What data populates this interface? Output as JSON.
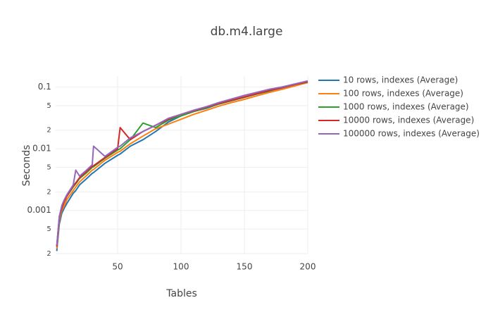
{
  "chart_data": {
    "type": "line",
    "title": "db.m4.large",
    "xlabel": "Tables",
    "ylabel": "Seconds",
    "x": [
      2,
      4,
      6,
      8,
      10,
      15,
      17,
      20,
      25,
      30,
      31,
      40,
      50,
      52,
      60,
      70,
      80,
      90,
      100,
      110,
      120,
      130,
      140,
      150,
      160,
      170,
      180,
      190,
      200
    ],
    "series": [
      {
        "name": "10 rows, indexes (Average)",
        "color": "#1f77b4",
        "values": [
          0.00022,
          0.0006,
          0.0009,
          0.0011,
          0.0013,
          0.0019,
          0.0021,
          0.0026,
          0.0032,
          0.004,
          0.0041,
          0.0058,
          0.0078,
          0.0082,
          0.011,
          0.014,
          0.019,
          0.027,
          0.034,
          0.04,
          0.045,
          0.053,
          0.06,
          0.068,
          0.077,
          0.087,
          0.097,
          0.108,
          0.12
        ]
      },
      {
        "name": "100 rows, indexes (Average)",
        "color": "#ff7f0e",
        "values": [
          0.00024,
          0.00068,
          0.001,
          0.0012,
          0.0015,
          0.0021,
          0.0024,
          0.0029,
          0.0036,
          0.0045,
          0.0046,
          0.0065,
          0.0087,
          0.0091,
          0.012,
          0.016,
          0.021,
          0.025,
          0.03,
          0.036,
          0.042,
          0.049,
          0.056,
          0.063,
          0.072,
          0.082,
          0.092,
          0.104,
          0.118
        ]
      },
      {
        "name": "1000 rows, indexes (Average)",
        "color": "#2ca02c",
        "values": [
          0.00026,
          0.00075,
          0.0011,
          0.0014,
          0.0017,
          0.0024,
          0.0027,
          0.0033,
          0.004,
          0.005,
          0.0051,
          0.007,
          0.0095,
          0.01,
          0.014,
          0.026,
          0.022,
          0.029,
          0.034,
          0.04,
          0.046,
          0.053,
          0.06,
          0.068,
          0.077,
          0.086,
          0.1,
          0.11,
          0.12
        ]
      },
      {
        "name": "10000 rows, indexes (Average)",
        "color": "#d62728",
        "values": [
          0.00026,
          0.00078,
          0.0011,
          0.0014,
          0.0017,
          0.0025,
          0.0028,
          0.0034,
          0.0042,
          0.0052,
          0.0053,
          0.0072,
          0.01,
          0.022,
          0.014,
          0.019,
          0.024,
          0.03,
          0.036,
          0.041,
          0.047,
          0.054,
          0.061,
          0.069,
          0.078,
          0.088,
          0.098,
          0.11,
          0.121
        ]
      },
      {
        "name": "100000 rows, indexes (Average)",
        "color": "#9467bd",
        "values": [
          0.00027,
          0.0008,
          0.0012,
          0.0015,
          0.0018,
          0.0026,
          0.0045,
          0.0036,
          0.0044,
          0.0055,
          0.011,
          0.0075,
          0.0105,
          0.011,
          0.015,
          0.019,
          0.024,
          0.031,
          0.036,
          0.042,
          0.048,
          0.056,
          0.064,
          0.073,
          0.082,
          0.092,
          0.1,
          0.112,
          0.125
        ]
      }
    ],
    "xlim": [
      1,
      200
    ],
    "xticks": [
      50,
      100,
      150,
      200
    ],
    "ylim": [
      0.0002,
      0.15
    ],
    "ylog": true,
    "yticks": [
      {
        "value": 0.0002,
        "label": "2"
      },
      {
        "value": 0.0005,
        "label": "5"
      },
      0.001,
      {
        "value": 0.002,
        "label": "2"
      },
      {
        "value": 0.005,
        "label": "5"
      },
      0.01,
      {
        "value": 0.02,
        "label": "2"
      },
      {
        "value": 0.05,
        "label": "5"
      },
      0.1
    ],
    "grid": true,
    "legend": "top-right"
  }
}
